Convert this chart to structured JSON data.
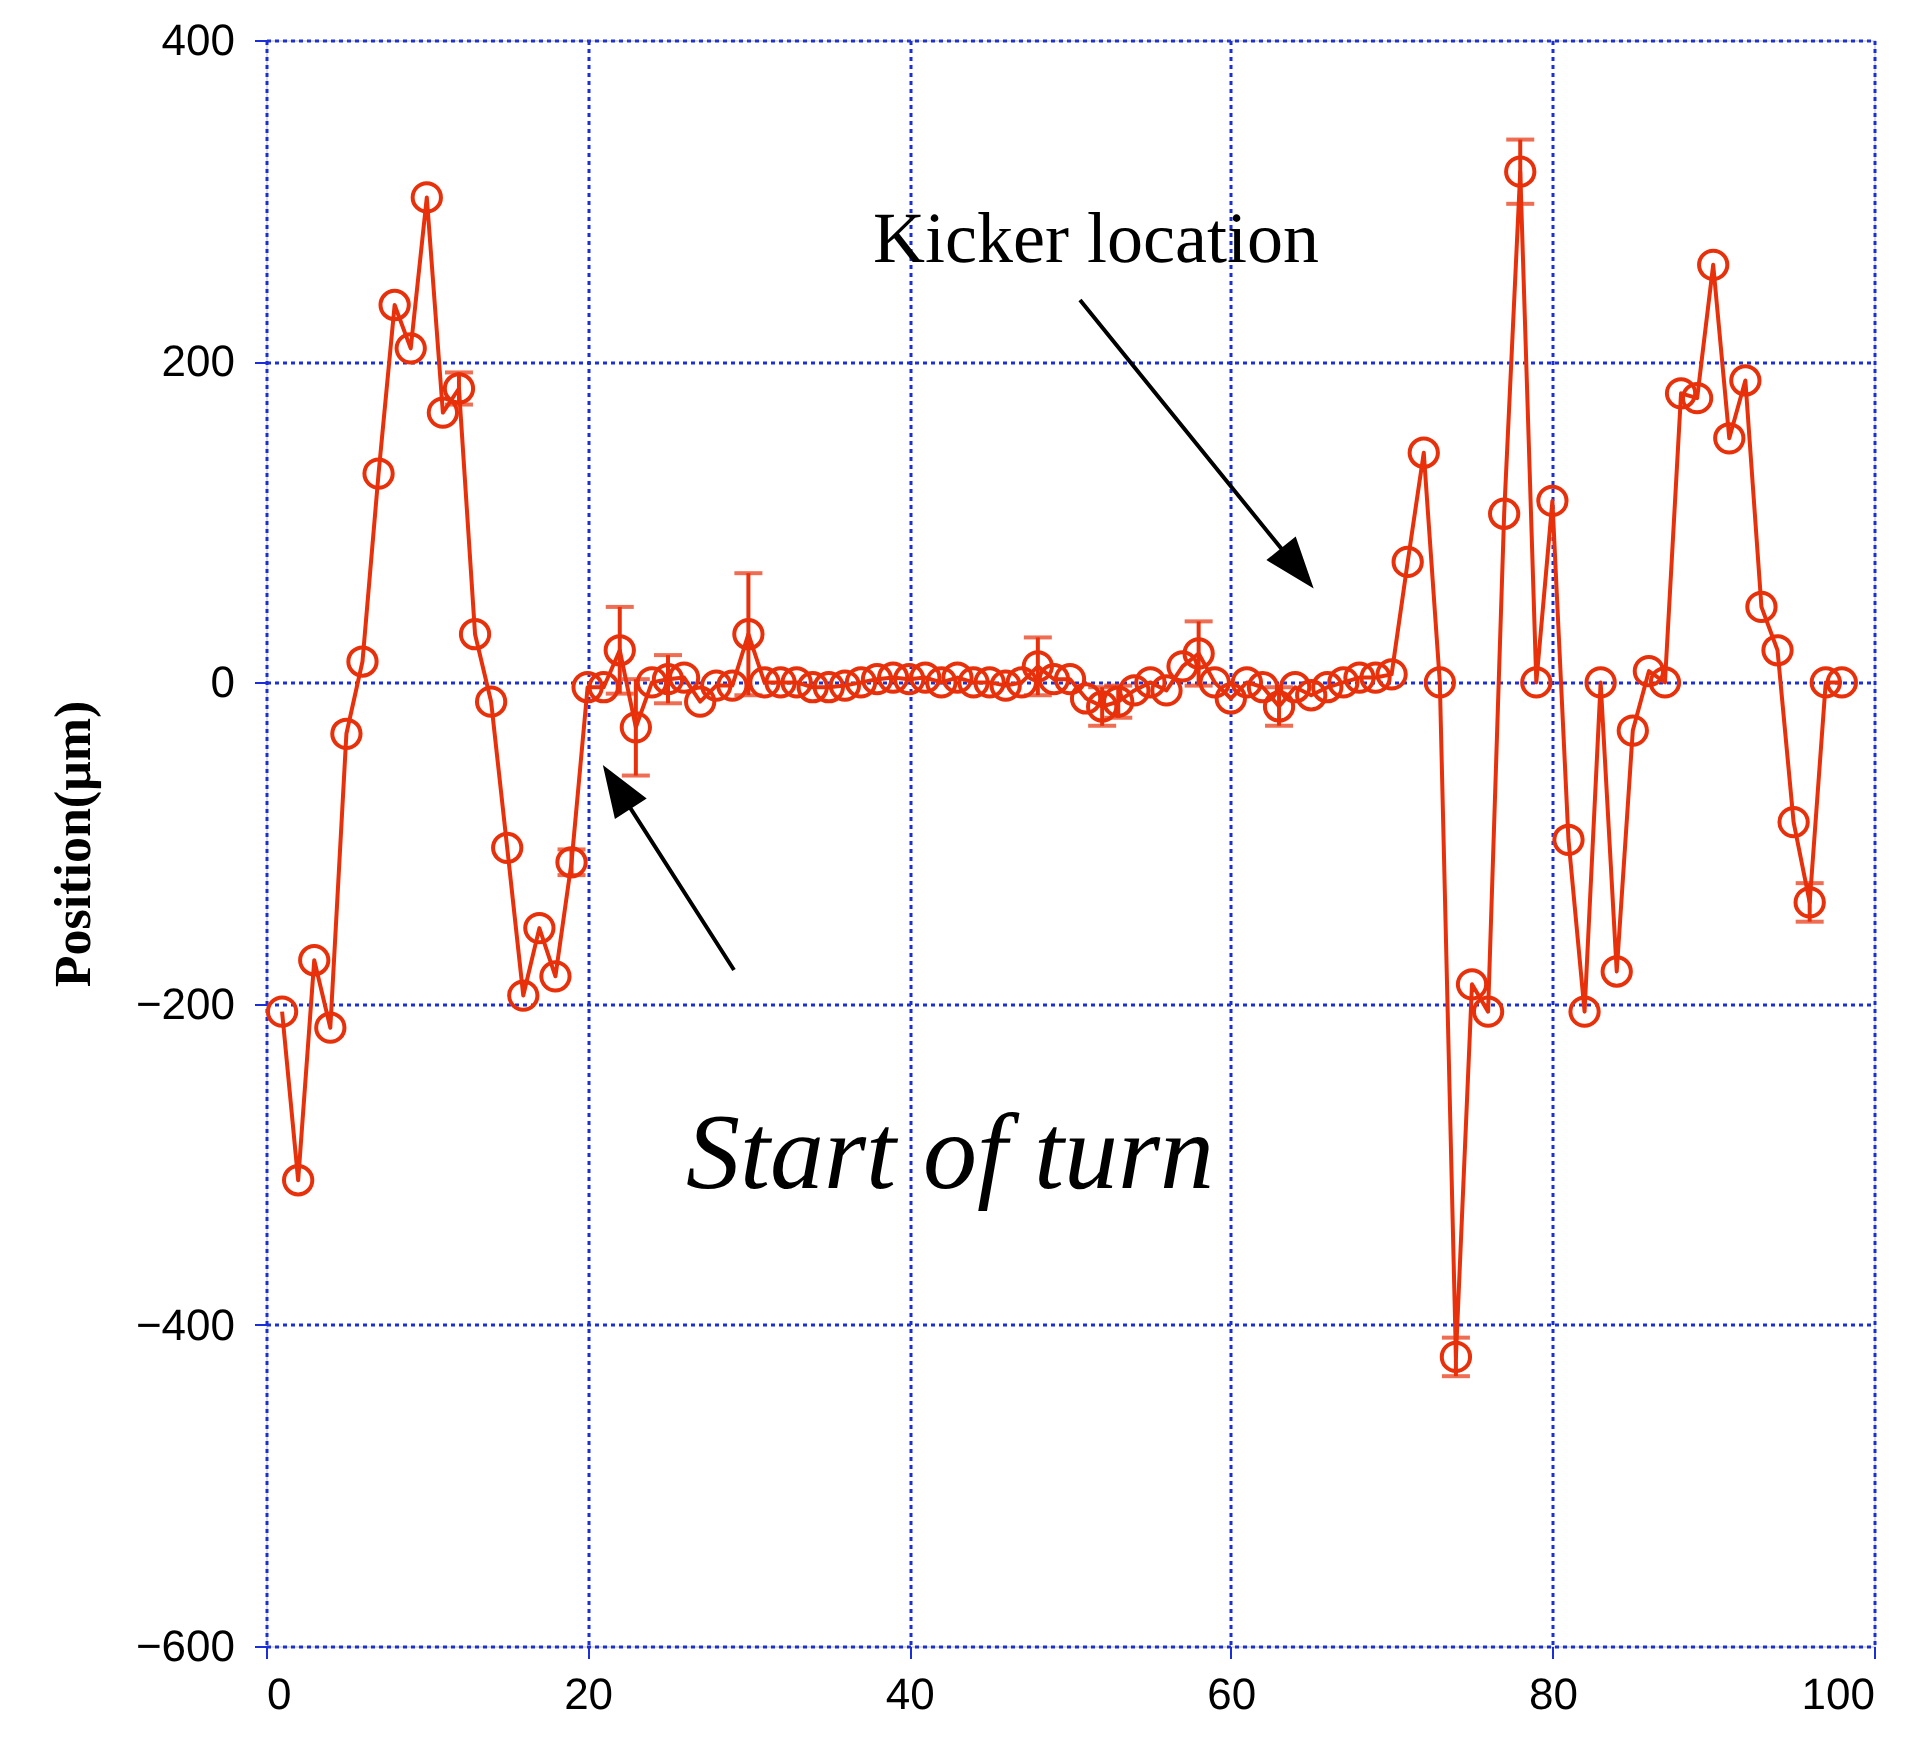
{
  "chart_data": {
    "type": "line",
    "ylabel": "Position(μm)",
    "x": [
      1,
      2,
      3,
      4,
      5,
      6,
      7,
      8,
      9,
      10,
      11,
      12,
      13,
      14,
      15,
      16,
      17,
      18,
      19,
      20,
      21,
      22,
      23,
      24,
      25,
      26,
      27,
      28,
      29,
      30,
      31,
      32,
      33,
      34,
      35,
      36,
      37,
      38,
      39,
      40,
      41,
      42,
      43,
      44,
      45,
      46,
      47,
      48,
      49,
      50,
      51,
      52,
      53,
      54,
      55,
      56,
      57,
      58,
      59,
      60,
      61,
      62,
      63,
      64,
      65,
      66,
      67,
      68,
      69,
      70,
      71,
      72,
      73,
      74,
      75,
      76,
      77,
      78,
      79,
      80,
      81,
      82,
      83,
      84,
      85,
      86,
      87,
      88,
      89,
      90,
      91,
      92,
      93,
      94,
      95,
      96,
      97,
      98
    ],
    "series": [
      {
        "color": "#e8300a",
        "values": [
          -205,
          -310,
          -173,
          -215,
          -32,
          13,
          130,
          235,
          208,
          302,
          168,
          183,
          30,
          -12,
          -103,
          -195,
          -153,
          -183,
          -112,
          -3,
          -3,
          20,
          -28,
          0,
          2,
          3,
          -12,
          -2,
          -2,
          30,
          0,
          0,
          0,
          -3,
          -3,
          -2,
          0,
          2,
          3,
          2,
          3,
          0,
          3,
          0,
          0,
          -2,
          0,
          10,
          2,
          2,
          -10,
          -15,
          -12,
          -5,
          0,
          -5,
          10,
          18,
          0,
          -10,
          0,
          -3,
          -15,
          -3,
          -8,
          -3,
          0,
          3,
          3,
          5,
          75,
          143,
          0,
          -420,
          -188,
          -205,
          105,
          318,
          0,
          113,
          -98,
          -205,
          0,
          -180,
          -30,
          7,
          0,
          180,
          177,
          260,
          152,
          188,
          47,
          20,
          -87,
          -137,
          0,
          0
        ],
        "errors": [
          null,
          null,
          null,
          null,
          null,
          null,
          null,
          null,
          null,
          null,
          null,
          10,
          null,
          null,
          null,
          null,
          null,
          null,
          8,
          null,
          null,
          27,
          30,
          null,
          15,
          null,
          null,
          null,
          null,
          38,
          null,
          null,
          null,
          null,
          null,
          null,
          null,
          null,
          null,
          null,
          null,
          null,
          null,
          null,
          null,
          null,
          null,
          18,
          null,
          null,
          null,
          12,
          10,
          null,
          null,
          null,
          null,
          20,
          null,
          null,
          null,
          null,
          12,
          null,
          null,
          null,
          null,
          null,
          null,
          null,
          null,
          null,
          null,
          12,
          null,
          null,
          null,
          20,
          null,
          null,
          null,
          null,
          null,
          null,
          null,
          null,
          null,
          null,
          null,
          null,
          null,
          null,
          null,
          null,
          null,
          12,
          null,
          null
        ]
      }
    ],
    "xlim": [
      0,
      100
    ],
    "xticks": [
      0,
      20,
      40,
      60,
      80,
      100
    ],
    "ylim": [
      -600,
      400
    ],
    "yticks": [
      -600,
      -400,
      -200,
      0,
      200,
      400
    ],
    "grid": true,
    "marker": "circle",
    "line_style": "solid",
    "annotations": [
      "Kicker location",
      "Start of turn"
    ]
  }
}
